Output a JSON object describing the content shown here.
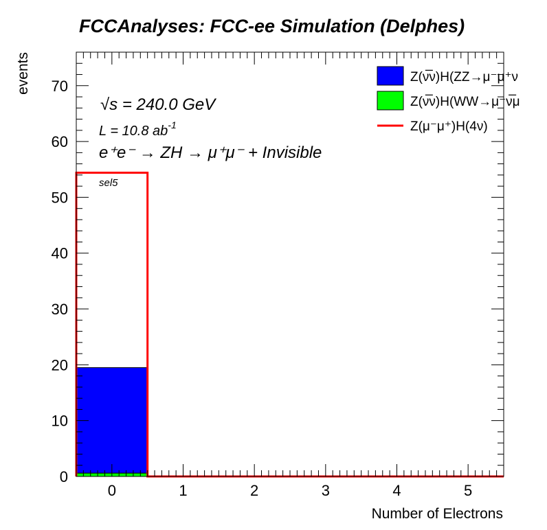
{
  "chart_data": {
    "type": "bar",
    "title": "FCCAnalyses: FCC-ee Simulation (Delphes)",
    "xlabel": "Number of Electrons",
    "ylabel": "events",
    "xlim": [
      -0.5,
      5.5
    ],
    "ylim": [
      0,
      76
    ],
    "x_ticks": [
      "0",
      "1",
      "2",
      "3",
      "4",
      "5"
    ],
    "y_ticks": [
      "0",
      "10",
      "20",
      "30",
      "40",
      "50",
      "60",
      "70"
    ],
    "bin_edges": [
      -0.5,
      0.5,
      1.5,
      2.5,
      3.5,
      4.5,
      5.5
    ],
    "series": [
      {
        "name": "Z(ν̅ν)H(WW→μ⁻ν̅μ",
        "kind": "stacked-filled",
        "color": "#00ff00",
        "values": [
          0.6,
          0,
          0,
          0,
          0,
          0
        ]
      },
      {
        "name": "Z(ν̅ν)H(ZZ→μ⁻μ⁺ν",
        "kind": "stacked-filled",
        "color": "#0000ff",
        "values": [
          18.9,
          0,
          0,
          0,
          0,
          0
        ]
      },
      {
        "name": "Z(μ⁻μ⁺)H(4ν)",
        "kind": "line",
        "color": "#ff0000",
        "values": [
          54.4,
          0,
          0,
          0,
          0,
          0
        ]
      }
    ],
    "legend_position": "top-right",
    "annotations": {
      "energy_sqrt": "√s",
      "energy_value": " = 240.0 GeV",
      "lumi": "L = 10.8 ab",
      "lumi_exp": "-1",
      "process": "e⁺e⁻ → ZH → μ⁺μ⁻ + Invisible",
      "selection": "sel5"
    }
  }
}
